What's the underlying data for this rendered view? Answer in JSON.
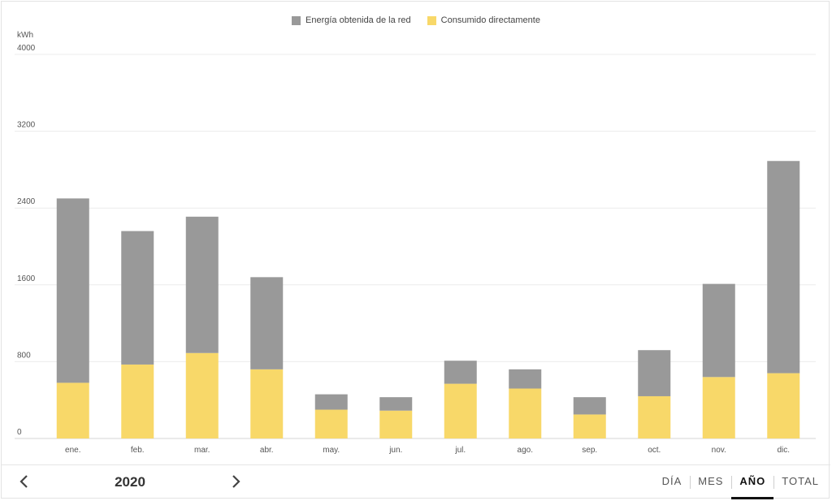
{
  "chart_data": {
    "type": "bar",
    "stacked": true,
    "unit_label": "kWh",
    "categories": [
      "ene.",
      "feb.",
      "mar.",
      "abr.",
      "may.",
      "jun.",
      "jul.",
      "ago.",
      "sep.",
      "oct.",
      "nov.",
      "dic."
    ],
    "series": [
      {
        "name": "Consumido directamente",
        "color": "#f8d869",
        "values": [
          580,
          770,
          890,
          720,
          300,
          290,
          570,
          520,
          250,
          440,
          640,
          680
        ]
      },
      {
        "name": "Energía obtenida de la red",
        "color": "#999999",
        "values": [
          1920,
          1390,
          1420,
          960,
          160,
          140,
          240,
          200,
          180,
          480,
          970,
          2210
        ]
      }
    ],
    "yticks": [
      0,
      800,
      1600,
      2400,
      3200,
      4000
    ],
    "ylim": [
      0,
      4000
    ],
    "legend_position": "top-center",
    "grid": true
  },
  "legend": [
    {
      "label": "Energía obtenida de la red",
      "color": "#999999"
    },
    {
      "label": "Consumido directamente",
      "color": "#f8d869"
    }
  ],
  "footer": {
    "year": "2020",
    "prev_icon": "chevron-left-icon",
    "next_icon": "chevron-right-icon",
    "tabs": [
      {
        "label": "DÍA",
        "active": false
      },
      {
        "label": "MES",
        "active": false
      },
      {
        "label": "AÑO",
        "active": true
      },
      {
        "label": "TOTAL",
        "active": false
      }
    ]
  }
}
